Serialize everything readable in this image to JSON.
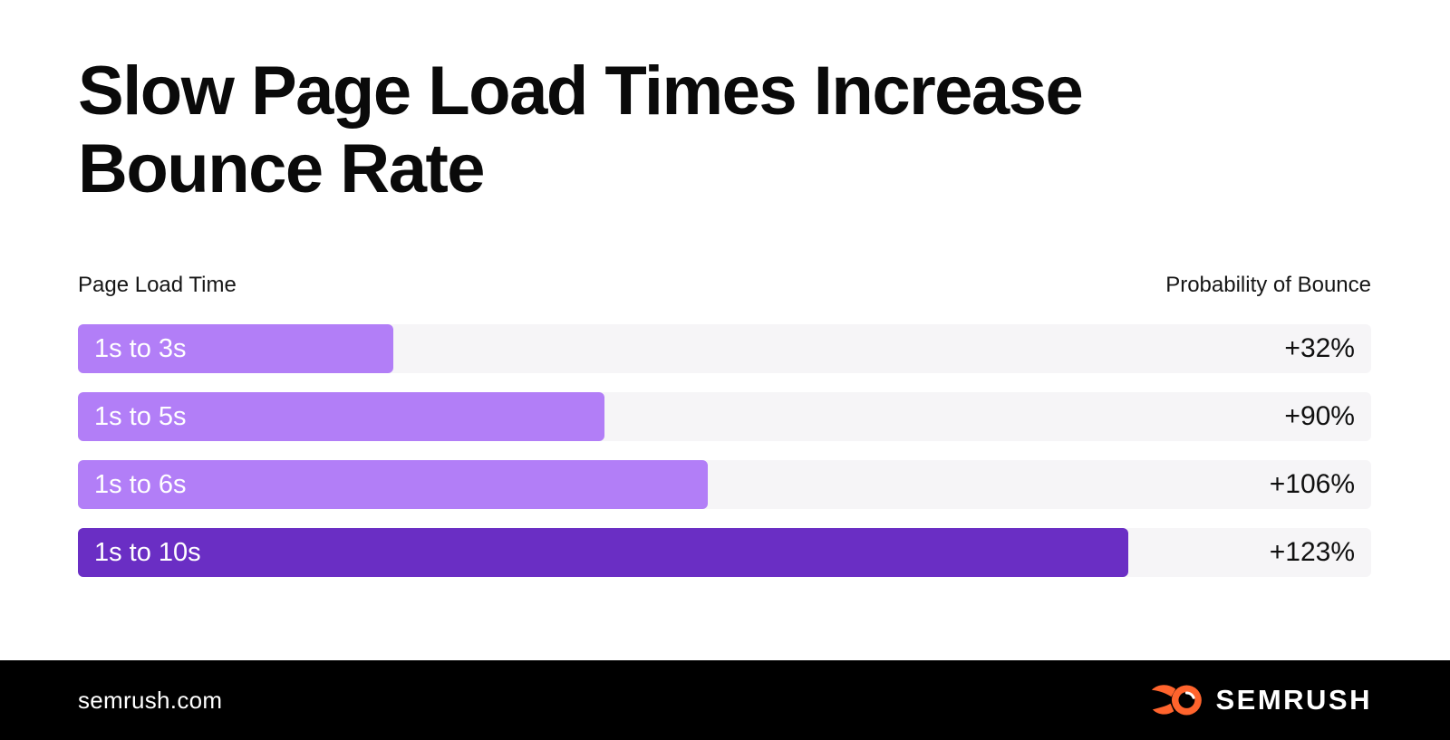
{
  "header": {
    "title": "Slow Page Load Times Increase Bounce Rate"
  },
  "chart": {
    "left_label": "Page Load Time",
    "right_label": "Probability of Bounce"
  },
  "chart_data": {
    "type": "bar",
    "orientation": "horizontal",
    "title": "Slow Page Load Times Increase Bounce Rate",
    "ylabel": "Page Load Time",
    "xlabel": "Probability of Bounce",
    "categories": [
      "1s to 3s",
      "1s to 5s",
      "1s to 6s",
      "1s to 10s"
    ],
    "values": [
      32,
      90,
      106,
      123
    ],
    "value_labels": [
      "+32%",
      "+90%",
      "+106%",
      "+123%"
    ],
    "bar_fractions": [
      0.244,
      0.407,
      0.487,
      0.812
    ],
    "bar_colors": [
      "#b27ef7",
      "#b27ef7",
      "#b27ef7",
      "#6a2ec4"
    ],
    "track_color": "#f6f5f7",
    "grid": false,
    "legend": false
  },
  "footer": {
    "site": "semrush.com",
    "brand": "SEMRUSH",
    "brand_color": "#ff642d",
    "background": "#000000"
  }
}
